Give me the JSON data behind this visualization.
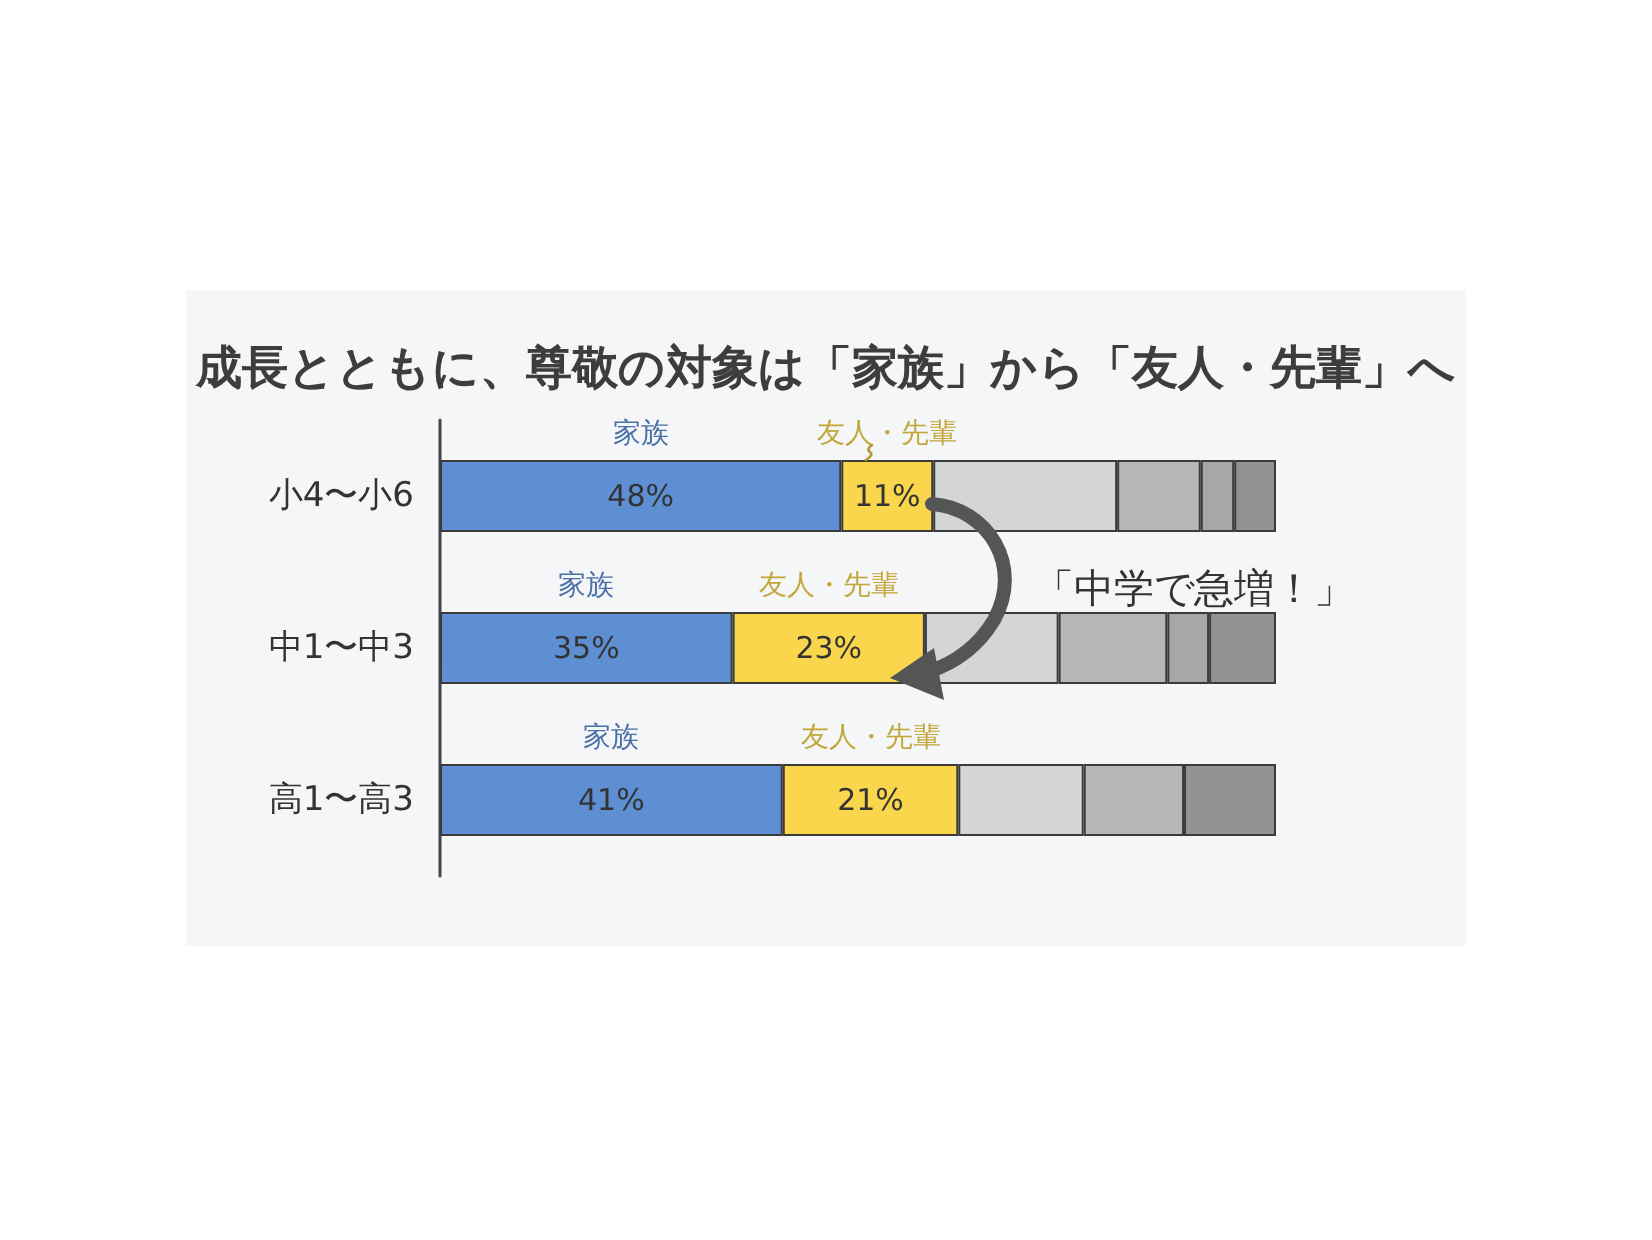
{
  "chart_data": {
    "type": "bar",
    "orientation": "horizontal",
    "stacked": true,
    "title": "成長とともに、尊敬の対象は「家族」から「友人・先輩」へ",
    "categories": [
      "小4〜小6",
      "中1〜中3",
      "高1〜高3"
    ],
    "series": [
      {
        "name": "家族",
        "color": "#5f8fd3",
        "values": [
          48,
          35,
          41
        ],
        "value_labels": [
          "48%",
          "35%",
          "41%"
        ]
      },
      {
        "name": "友人・先輩",
        "color": "#f9d64c",
        "values": [
          11,
          23,
          21
        ],
        "value_labels": [
          "11%",
          "23%",
          "21%"
        ]
      },
      {
        "color": "#d5d5d5",
        "values": [
          22,
          16,
          15
        ]
      },
      {
        "color": "#b7b7b7",
        "values": [
          10,
          13,
          12
        ]
      },
      {
        "color": "#a7a7a7",
        "values": [
          4,
          5,
          null
        ]
      },
      {
        "color": "#929292",
        "values": [
          5,
          8,
          11
        ]
      }
    ],
    "annotations": [
      "「中学で急増！」"
    ]
  }
}
